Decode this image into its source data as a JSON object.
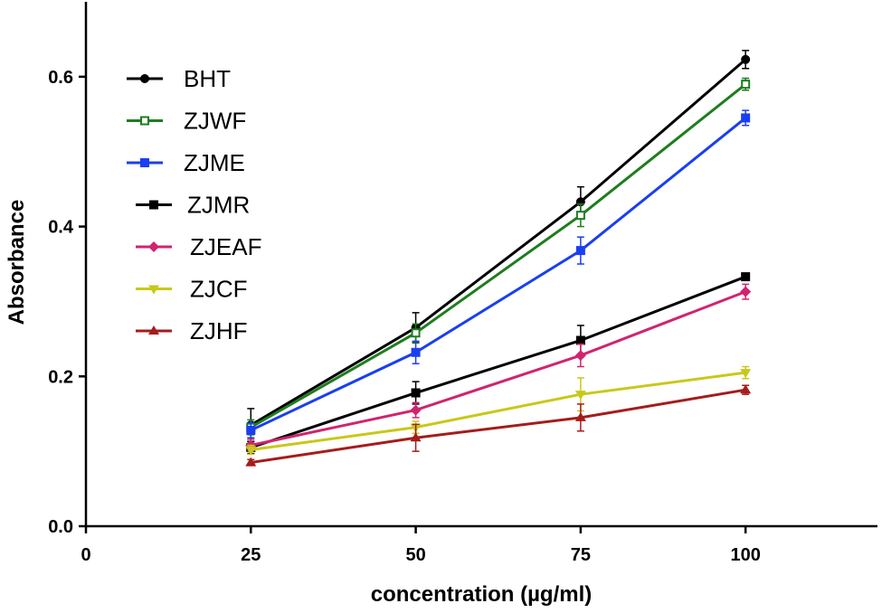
{
  "chart_data": {
    "type": "line",
    "title": "",
    "xlabel": "concentration (µg/ml)",
    "ylabel": "Absorbance",
    "xlim": [
      0,
      120
    ],
    "ylim": [
      0,
      0.7
    ],
    "x_ticks": [
      0,
      25,
      50,
      75,
      100
    ],
    "x_tick_labels": [
      "0",
      "25",
      "50",
      "75",
      "100"
    ],
    "y_ticks": [
      0,
      0.2,
      0.4,
      0.6
    ],
    "y_tick_labels": [
      "0.0",
      "0.2",
      "0.4",
      "0.6"
    ],
    "grid": false,
    "legend_position": "top-left",
    "x": [
      25,
      50,
      75,
      100
    ],
    "series": [
      {
        "name": "BHT",
        "color": "#000000",
        "marker": "circle",
        "values": [
          0.135,
          0.265,
          0.433,
          0.623
        ],
        "errors": [
          0.022,
          0.02,
          0.02,
          0.012
        ]
      },
      {
        "name": "ZJWF",
        "color": "#1e7d1e",
        "marker": "square-open",
        "values": [
          0.132,
          0.258,
          0.415,
          0.59
        ],
        "errors": [
          0.01,
          0.012,
          0.015,
          0.008
        ]
      },
      {
        "name": "ZJME",
        "color": "#1a3ff0",
        "marker": "square",
        "values": [
          0.128,
          0.232,
          0.368,
          0.545
        ],
        "errors": [
          0.01,
          0.015,
          0.018,
          0.01
        ]
      },
      {
        "name": "ZJMR",
        "color": "#000000",
        "marker": "square",
        "values": [
          0.105,
          0.178,
          0.248,
          0.333
        ],
        "errors": [
          0.008,
          0.015,
          0.02,
          0.004
        ]
      },
      {
        "name": "ZJEAF",
        "color": "#d0246e",
        "marker": "diamond",
        "values": [
          0.108,
          0.155,
          0.228,
          0.313
        ],
        "errors": [
          0.008,
          0.01,
          0.015,
          0.01
        ]
      },
      {
        "name": "ZJCF",
        "color": "#c8c81a",
        "marker": "triangle-down",
        "values": [
          0.102,
          0.132,
          0.176,
          0.205
        ],
        "errors": [
          0.006,
          0.008,
          0.022,
          0.008
        ]
      },
      {
        "name": "ZJHF",
        "color": "#a51c1c",
        "marker": "triangle-up",
        "values": [
          0.085,
          0.118,
          0.145,
          0.182
        ],
        "errors": [
          0.004,
          0.018,
          0.018,
          0.006
        ]
      }
    ]
  }
}
